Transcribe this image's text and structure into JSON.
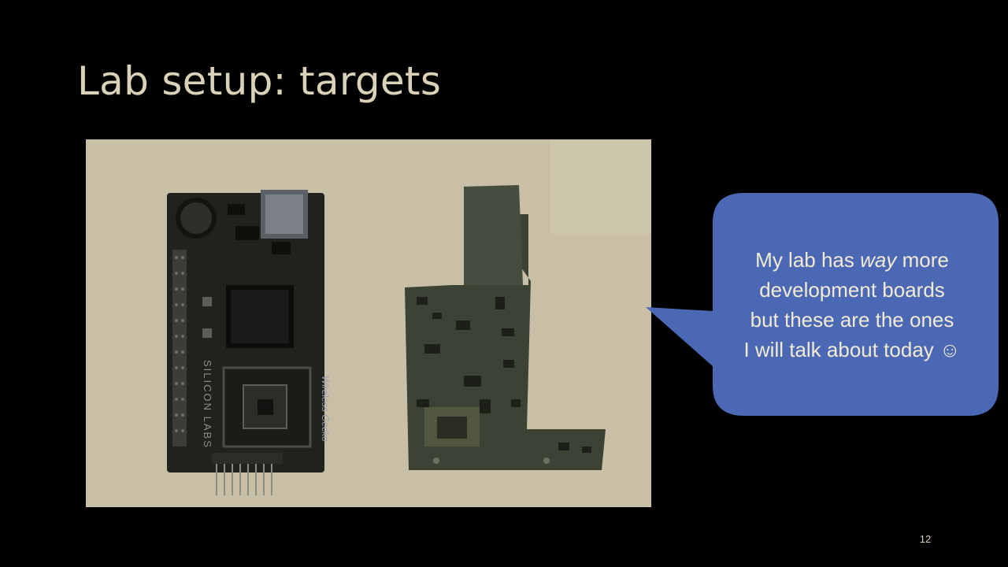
{
  "slide": {
    "title": "Lab setup: targets",
    "page_number": "12"
  },
  "photo": {
    "board_left_silkscreen": "SILICON LABS",
    "board_module_label": "Wireless Gecko"
  },
  "callout": {
    "line1_before": "My lab has ",
    "line1_emphasis": "way",
    "line1_after": " more",
    "line2": "development boards",
    "line3": "but these are the ones",
    "line4": "I will talk about today ☺"
  },
  "colors": {
    "background": "#000000",
    "title": "#d9d1b8",
    "photo_background": "#c9bfa7",
    "callout_fill": "#4a68b4",
    "callout_text": "#f2ead2"
  }
}
